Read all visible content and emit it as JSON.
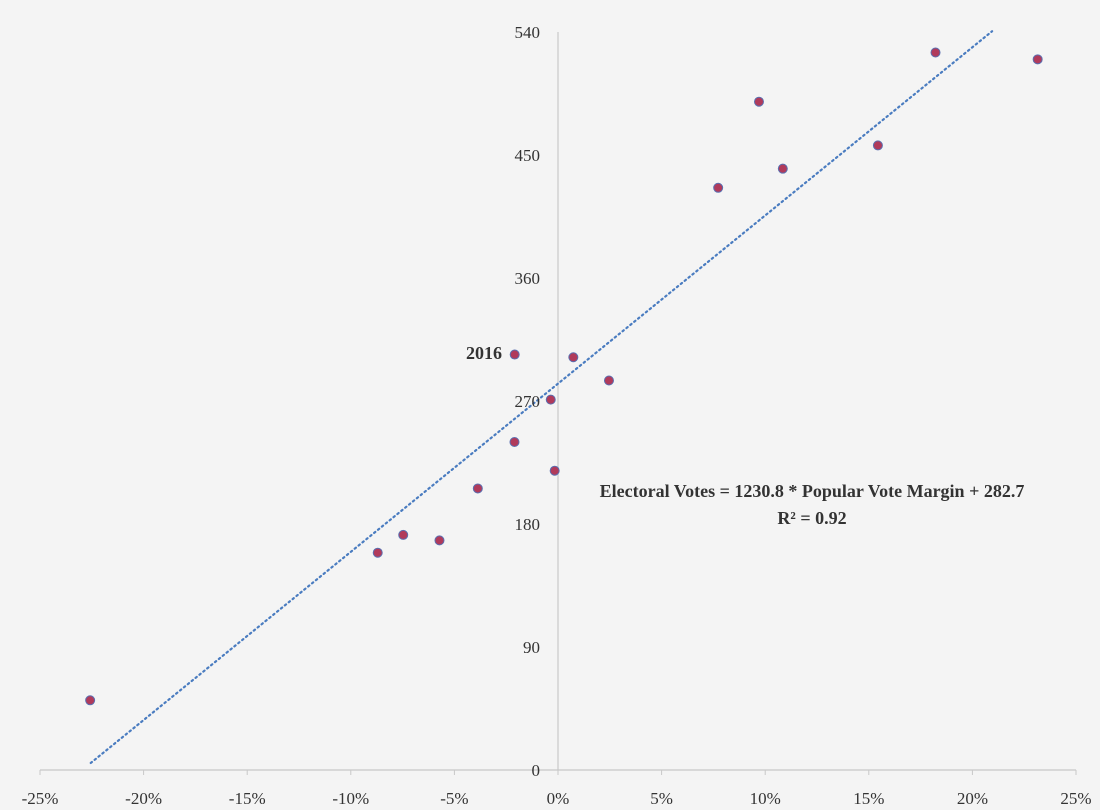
{
  "chart_data": {
    "type": "scatter",
    "title": "",
    "xlabel": "",
    "ylabel": "",
    "xlim": [
      -0.25,
      0.25
    ],
    "ylim": [
      0,
      540
    ],
    "x_ticks": [
      -0.25,
      -0.2,
      -0.15,
      -0.1,
      -0.05,
      0.0,
      0.05,
      0.1,
      0.15,
      0.2,
      0.25
    ],
    "x_tick_labels": [
      "-25%",
      "-20%",
      "-15%",
      "-10%",
      "-5%",
      "0%",
      "5%",
      "10%",
      "15%",
      "20%",
      "25%"
    ],
    "y_ticks": [
      0,
      90,
      180,
      270,
      360,
      450,
      540
    ],
    "y_tick_labels": [
      "0",
      "90",
      "180",
      "270",
      "360",
      "450",
      "540"
    ],
    "grid": false,
    "colors": {
      "point_fill": "#b03a5b",
      "point_stroke": "#5a6fb0",
      "trendline": "#4a7cc0",
      "axis": "#c8c8c8"
    },
    "points": [
      {
        "x": -0.2258,
        "y": 51
      },
      {
        "x": -0.087,
        "y": 159
      },
      {
        "x": -0.0747,
        "y": 172
      },
      {
        "x": -0.0572,
        "y": 168
      },
      {
        "x": -0.0387,
        "y": 206
      },
      {
        "x": -0.021,
        "y": 240
      },
      {
        "x": -0.0209,
        "y": 304,
        "label": "2016"
      },
      {
        "x": -0.0035,
        "y": 271
      },
      {
        "x": -0.0016,
        "y": 219
      },
      {
        "x": 0.0074,
        "y": 302
      },
      {
        "x": 0.0246,
        "y": 285
      },
      {
        "x": 0.0773,
        "y": 426
      },
      {
        "x": 0.097,
        "y": 489
      },
      {
        "x": 0.1085,
        "y": 440
      },
      {
        "x": 0.1544,
        "y": 457
      },
      {
        "x": 0.1822,
        "y": 525
      },
      {
        "x": 0.2315,
        "y": 520
      }
    ],
    "trendline": {
      "slope": 1230.8,
      "intercept": 282.7,
      "x_range": [
        -0.2255,
        0.2095
      ],
      "style": "dotted"
    },
    "annotations": {
      "equation": "Electoral Votes = 1230.8 * Popular Vote Margin + 282.7",
      "r_squared": "R² = 0.92",
      "point_label": "2016"
    }
  }
}
